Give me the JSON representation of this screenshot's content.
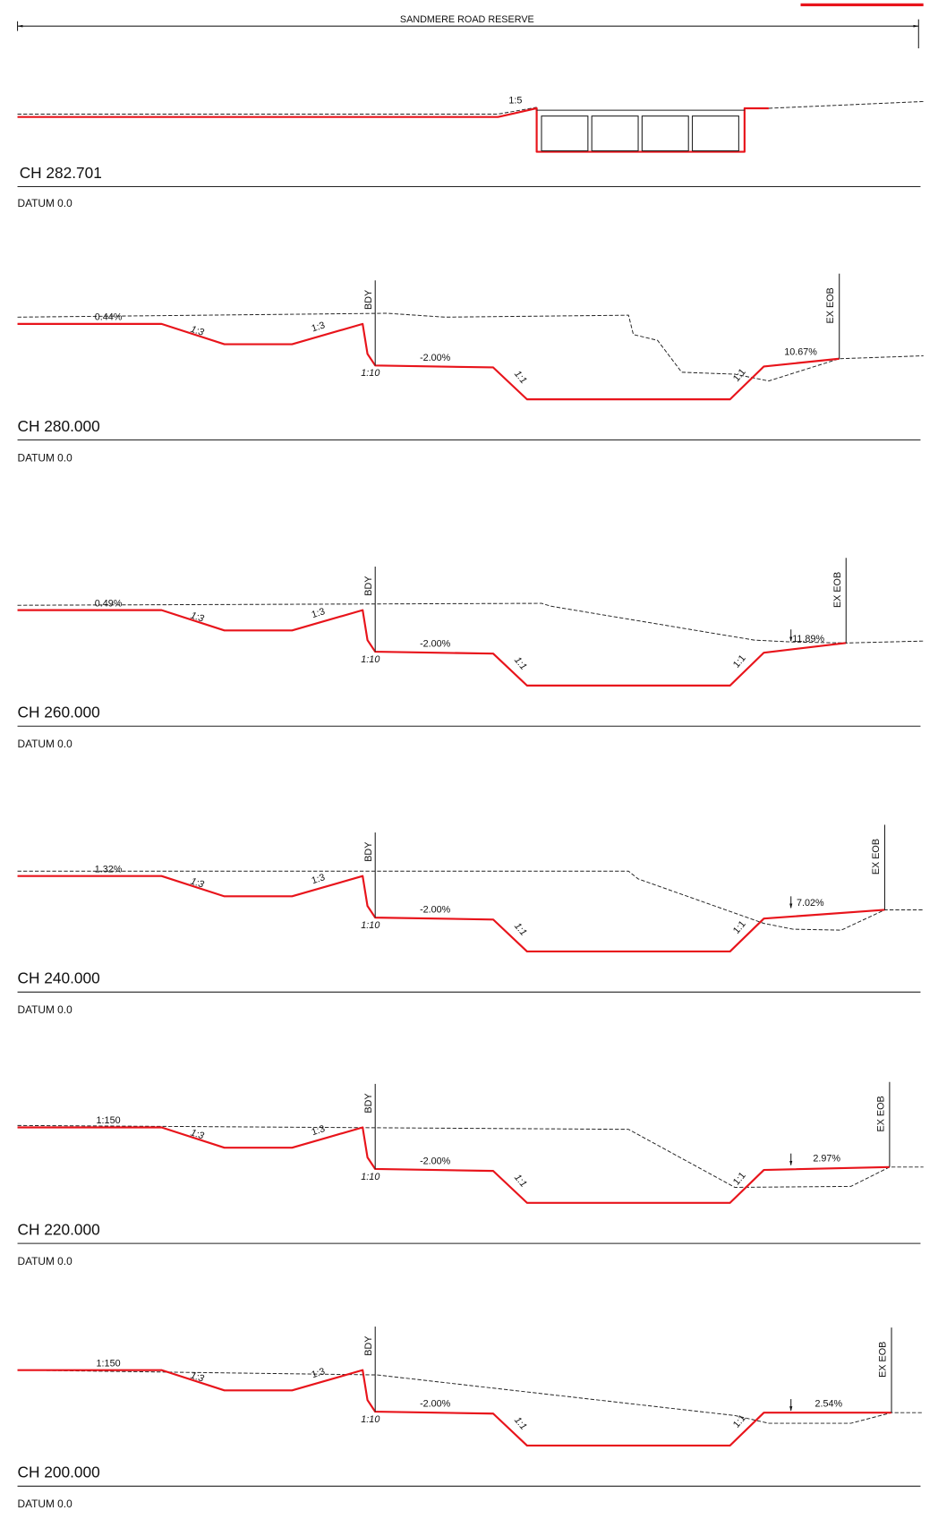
{
  "header": {
    "title": "SANDMERE ROAD RESERVE"
  },
  "sections": [
    {
      "chainage": "CH 282.701",
      "datum": "DATUM 0.0",
      "batter": "1:5"
    },
    {
      "chainage": "CH 280.000",
      "datum": "DATUM 0.0",
      "existing_grade": "0.44%",
      "batter_left": "1:3",
      "batter_right": "1:3",
      "boundary": "BDY",
      "kerb_slope": "1:10",
      "crossfall": "-2.00%",
      "drain_left": "1:1",
      "drain_right": "1:1",
      "verge_grade": "10.67%",
      "edge": "EX EOB"
    },
    {
      "chainage": "CH 260.000",
      "datum": "DATUM 0.0",
      "existing_grade": "0.49%",
      "batter_left": "1:3",
      "batter_right": "1:3",
      "boundary": "BDY",
      "kerb_slope": "1:10",
      "crossfall": "-2.00%",
      "drain_left": "1:1",
      "drain_right": "1:1",
      "verge_grade": "11.89%",
      "edge": "EX EOB"
    },
    {
      "chainage": "CH 240.000",
      "datum": "DATUM 0.0",
      "existing_grade": "1.32%",
      "batter_left": "1:3",
      "batter_right": "1:3",
      "boundary": "BDY",
      "kerb_slope": "1:10",
      "crossfall": "-2.00%",
      "drain_left": "1:1",
      "drain_right": "1:1",
      "verge_grade": "7.02%",
      "edge": "EX EOB"
    },
    {
      "chainage": "CH 220.000",
      "datum": "DATUM 0.0",
      "existing_grade": "1:150",
      "batter_left": "1:3",
      "batter_right": "1:3",
      "boundary": "BDY",
      "kerb_slope": "1:10",
      "crossfall": "-2.00%",
      "drain_left": "1:1",
      "drain_right": "1:1",
      "verge_grade": "2.97%",
      "edge": "EX EOB"
    },
    {
      "chainage": "CH 200.000",
      "datum": "DATUM 0.0",
      "existing_grade": "1:150",
      "batter_left": "1:3",
      "batter_right": "1:3",
      "boundary": "BDY",
      "kerb_slope": "1:10",
      "crossfall": "-2.00%",
      "drain_left": "1:1",
      "drain_right": "1:1",
      "verge_grade": "2.54%",
      "edge": "EX EOB"
    }
  ]
}
